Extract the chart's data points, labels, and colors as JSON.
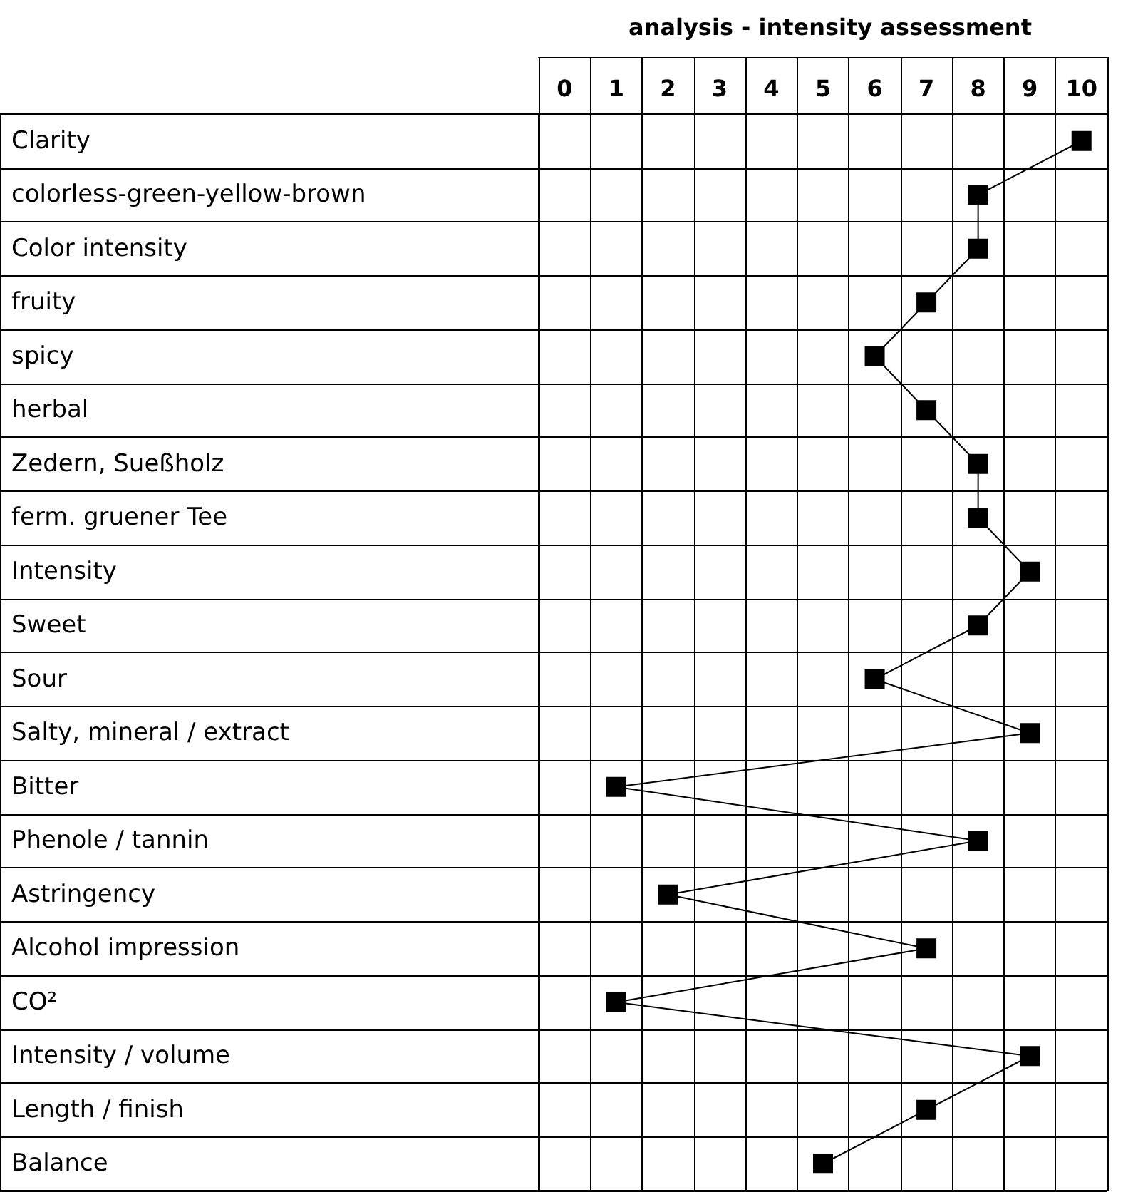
{
  "chart_data": {
    "type": "line",
    "orientation": "horizontal",
    "title": "analysis - intensity assessment",
    "categories": [
      "Clarity",
      "colorless-green-yellow-brown",
      "Color intensity",
      "fruity",
      "spicy",
      "herbal",
      "Zedern, Sueßholz",
      "ferm. gruener Tee",
      "Intensity",
      "Sweet",
      "Sour",
      "Salty, mineral / extract",
      "Bitter",
      "Phenole / tannin",
      "Astringency",
      "Alcohol impression",
      "CO²",
      "Intensity / volume",
      "Length / finish",
      "Balance"
    ],
    "values": [
      10,
      8,
      8,
      7,
      6,
      7,
      8,
      8,
      9,
      8,
      6,
      9,
      1,
      8,
      2,
      7,
      1,
      9,
      7,
      5
    ],
    "color": "#000000",
    "xlim": [
      -0.5,
      10.5
    ],
    "xticks": [
      0,
      1,
      2,
      3,
      4,
      5,
      6,
      7,
      8,
      9,
      10
    ],
    "grid": true,
    "marker": "square",
    "line_style": "solid"
  }
}
